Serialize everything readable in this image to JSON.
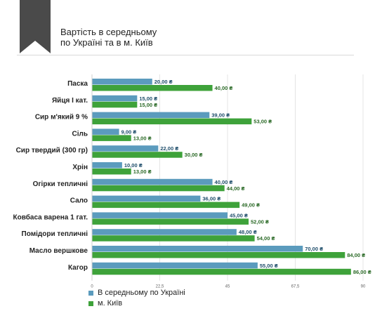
{
  "header": {
    "title_line1": "Вартість в середньому",
    "title_line2": "по Україні та в м. Київ"
  },
  "colors": {
    "ukraine": "#5b9bbd",
    "kyiv": "#3ea23a",
    "bookmark": "#4a4a4a"
  },
  "chart_data": {
    "type": "bar",
    "orientation": "horizontal",
    "categories": [
      "Паска",
      "Яйця I кат.",
      "Сир м'який 9 %",
      "Сіль",
      "Сир твердий (300 гр)",
      "Хрін",
      "Огірки тепличні",
      "Сало",
      "Ковбаса варена 1 гат.",
      "Помідори тепличні",
      "Масло вершкове",
      "Кагор"
    ],
    "series": [
      {
        "name": "В середньому по Україні",
        "values": [
          20,
          15,
          39,
          9,
          22,
          10,
          40,
          36,
          45,
          48,
          70,
          55
        ],
        "labels": [
          "20,00 ₴",
          "15,00 ₴",
          "39,00 ₴",
          "9,00 ₴",
          "22,00 ₴",
          "10,00 ₴",
          "40,00 ₴",
          "36,00 ₴",
          "45,00 ₴",
          "48,00 ₴",
          "70,00 ₴",
          "55,00 ₴"
        ]
      },
      {
        "name": "м. Київ",
        "values": [
          40,
          15,
          53,
          13,
          30,
          13,
          44,
          49,
          52,
          54,
          84,
          86
        ],
        "labels": [
          "40,00 ₴",
          "15,00 ₴",
          "53,00 ₴",
          "13,00 ₴",
          "30,00 ₴",
          "13,00 ₴",
          "44,00 ₴",
          "49,00 ₴",
          "52,00 ₴",
          "54,00 ₴",
          "84,00 ₴",
          "86,00 ₴"
        ]
      }
    ],
    "xlim": [
      0,
      90
    ],
    "xticks": [
      0,
      22.5,
      45,
      67.5,
      90
    ],
    "xtick_labels": [
      "0",
      "22,5",
      "45",
      "67,5",
      "90"
    ],
    "grid": true,
    "legend_position": "bottom-left"
  }
}
